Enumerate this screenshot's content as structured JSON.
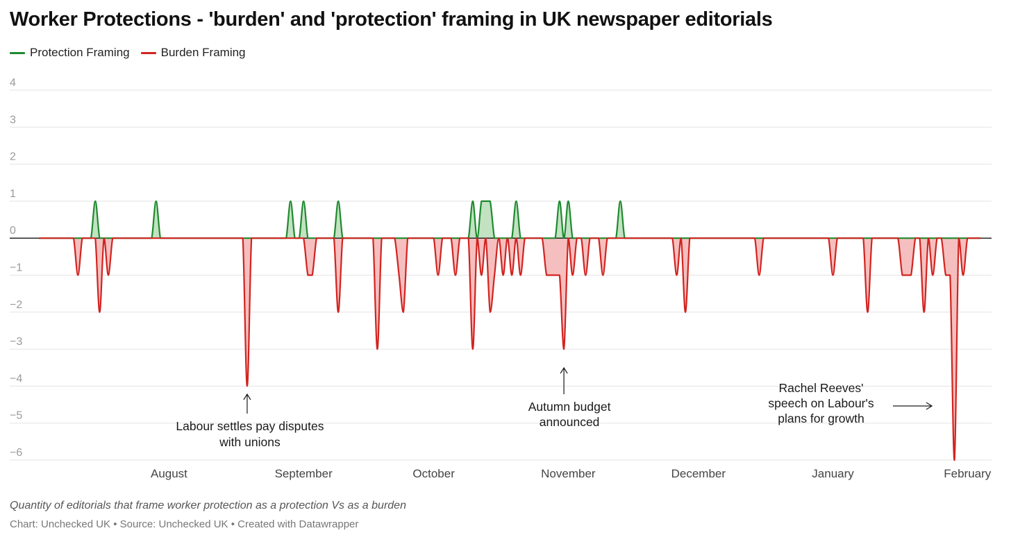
{
  "title": "Worker Protections - 'burden' and 'protection' framing in UK newspaper editorials",
  "description": "Quantity of editorials that frame worker protection as a protection Vs as a burden",
  "footer": "Chart: Unchecked UK • Source: Unchecked UK • Created with Datawrapper",
  "colors": {
    "protection_line": "#1e8a2e",
    "protection_fill": "#bfe0bf",
    "burden_line": "#d2231f",
    "burden_fill": "#f4bcbc",
    "baseline": "#111111",
    "grid": "#e3e3e3"
  },
  "chart_data": {
    "type": "area",
    "x_unit": "date",
    "xlim": [
      "2024-07-02",
      "2025-02-04"
    ],
    "ylim": [
      -6,
      4
    ],
    "y_ticks": [
      4,
      3,
      2,
      1,
      0,
      -1,
      -2,
      -3,
      -4,
      -5,
      -6
    ],
    "y_tick_labels": [
      "4",
      "3",
      "2",
      "1",
      "0",
      "−1",
      "−2",
      "−3",
      "−4",
      "−5",
      "−6"
    ],
    "x_ticks": [
      {
        "date": "2024-08-01",
        "label": "August"
      },
      {
        "date": "2024-09-01",
        "label": "September"
      },
      {
        "date": "2024-10-01",
        "label": "October"
      },
      {
        "date": "2024-11-01",
        "label": "November"
      },
      {
        "date": "2024-12-01",
        "label": "December"
      },
      {
        "date": "2025-01-01",
        "label": "January"
      },
      {
        "date": "2025-02-01",
        "label": "February"
      }
    ],
    "grid": true,
    "legend_position": "top-left",
    "series": [
      {
        "name": "Protection Framing",
        "points": [
          {
            "date": "2024-07-15",
            "value": 1
          },
          {
            "date": "2024-07-29",
            "value": 1
          },
          {
            "date": "2024-08-29",
            "value": 1
          },
          {
            "date": "2024-09-01",
            "value": 1
          },
          {
            "date": "2024-09-09",
            "value": 1
          },
          {
            "date": "2024-10-10",
            "value": 1
          },
          {
            "date": "2024-10-12",
            "value": 1
          },
          {
            "date": "2024-10-13",
            "value": 1
          },
          {
            "date": "2024-10-14",
            "value": 1
          },
          {
            "date": "2024-10-20",
            "value": 1
          },
          {
            "date": "2024-10-30",
            "value": 1
          },
          {
            "date": "2024-11-01",
            "value": 1
          },
          {
            "date": "2024-11-13",
            "value": 1
          }
        ]
      },
      {
        "name": "Burden Framing",
        "points": [
          {
            "date": "2024-07-11",
            "value": -1
          },
          {
            "date": "2024-07-16",
            "value": -2
          },
          {
            "date": "2024-07-18",
            "value": -1
          },
          {
            "date": "2024-08-19",
            "value": -4
          },
          {
            "date": "2024-09-02",
            "value": -1
          },
          {
            "date": "2024-09-03",
            "value": -1
          },
          {
            "date": "2024-09-09",
            "value": -2
          },
          {
            "date": "2024-09-18",
            "value": -3
          },
          {
            "date": "2024-09-23",
            "value": -1
          },
          {
            "date": "2024-09-24",
            "value": -2
          },
          {
            "date": "2024-10-02",
            "value": -1
          },
          {
            "date": "2024-10-06",
            "value": -1
          },
          {
            "date": "2024-10-10",
            "value": -3
          },
          {
            "date": "2024-10-12",
            "value": -1
          },
          {
            "date": "2024-10-14",
            "value": -2
          },
          {
            "date": "2024-10-15",
            "value": -1
          },
          {
            "date": "2024-10-17",
            "value": -1
          },
          {
            "date": "2024-10-19",
            "value": -1
          },
          {
            "date": "2024-10-21",
            "value": -1
          },
          {
            "date": "2024-10-27",
            "value": -1
          },
          {
            "date": "2024-10-28",
            "value": -1
          },
          {
            "date": "2024-10-29",
            "value": -1
          },
          {
            "date": "2024-10-30",
            "value": -1
          },
          {
            "date": "2024-10-31",
            "value": -3
          },
          {
            "date": "2024-11-02",
            "value": -1
          },
          {
            "date": "2024-11-05",
            "value": -1
          },
          {
            "date": "2024-11-09",
            "value": -1
          },
          {
            "date": "2024-11-26",
            "value": -1
          },
          {
            "date": "2024-11-28",
            "value": -2
          },
          {
            "date": "2024-12-15",
            "value": -1
          },
          {
            "date": "2025-01-01",
            "value": -1
          },
          {
            "date": "2025-01-09",
            "value": -2
          },
          {
            "date": "2025-01-17",
            "value": -1
          },
          {
            "date": "2025-01-18",
            "value": -1
          },
          {
            "date": "2025-01-19",
            "value": -1
          },
          {
            "date": "2025-01-22",
            "value": -2
          },
          {
            "date": "2025-01-24",
            "value": -1
          },
          {
            "date": "2025-01-27",
            "value": -1
          },
          {
            "date": "2025-01-28",
            "value": -1
          },
          {
            "date": "2025-01-29",
            "value": -6
          },
          {
            "date": "2025-01-31",
            "value": -1
          }
        ]
      }
    ],
    "annotations": [
      {
        "date": "2024-08-19",
        "value": -4,
        "lines": [
          "Labour settles pay disputes",
          "with unions"
        ],
        "arrow": "up"
      },
      {
        "date": "2024-10-31",
        "value": -3,
        "lines": [
          "Autumn budget",
          "announced"
        ],
        "arrow": "up"
      },
      {
        "date": "2025-01-29",
        "value": -6,
        "lines": [
          "Rachel Reeves'",
          "speech on Labour's",
          "plans for growth"
        ],
        "arrow": "right"
      }
    ]
  }
}
